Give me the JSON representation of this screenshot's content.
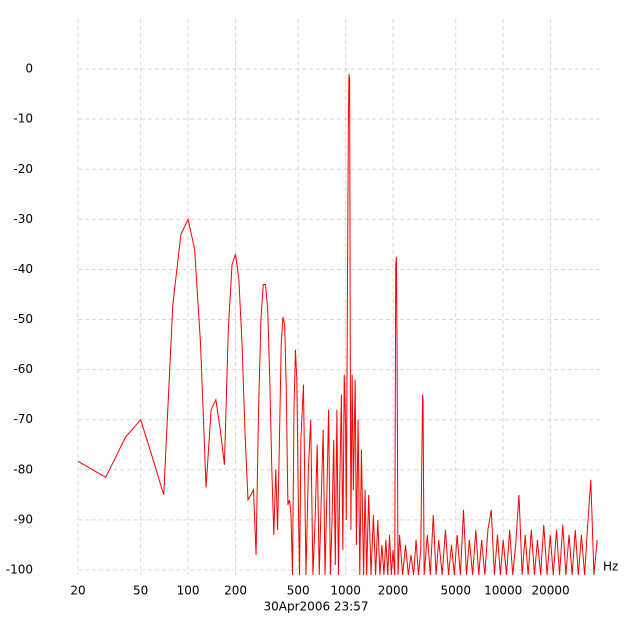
{
  "chart_data": {
    "type": "line",
    "color": "#ff0000",
    "log_x": true,
    "grid": true,
    "xlabel": "Hz",
    "caption": "30Apr2006  23:57",
    "xlim": [
      20,
      40000
    ],
    "ylim": [
      -101,
      10
    ],
    "xticks": [
      20,
      50,
      100,
      200,
      500,
      1000,
      2000,
      5000,
      10000,
      20000
    ],
    "yticks": [
      0,
      -10,
      -20,
      -30,
      -40,
      -50,
      -60,
      -70,
      -80,
      -90,
      -100
    ],
    "x": [
      20,
      30,
      40,
      50,
      60,
      70,
      80,
      90,
      100,
      110,
      120,
      130,
      140,
      150,
      160,
      170,
      180,
      190,
      200,
      210,
      220,
      230,
      240,
      250,
      260,
      270,
      280,
      290,
      300,
      310,
      320,
      330,
      340,
      350,
      360,
      370,
      380,
      390,
      400,
      410,
      420,
      430,
      440,
      450,
      460,
      470,
      480,
      490,
      500,
      510,
      520,
      540,
      560,
      580,
      600,
      620,
      640,
      660,
      680,
      700,
      720,
      740,
      760,
      780,
      800,
      820,
      840,
      860,
      880,
      900,
      920,
      940,
      960,
      980,
      1000,
      1010,
      1020,
      1040,
      1050,
      1060,
      1070,
      1080,
      1100,
      1120,
      1150,
      1170,
      1200,
      1230,
      1260,
      1300,
      1330,
      1360,
      1400,
      1450,
      1500,
      1550,
      1600,
      1650,
      1700,
      1750,
      1800,
      1850,
      1900,
      1950,
      2000,
      2050,
      2080,
      2100,
      2120,
      2150,
      2200,
      2300,
      2400,
      2500,
      2600,
      2700,
      2800,
      2900,
      3000,
      3080,
      3100,
      3150,
      3300,
      3450,
      3600,
      3750,
      3900,
      4100,
      4300,
      4500,
      4700,
      4900,
      5100,
      5350,
      5600,
      5850,
      6100,
      6400,
      6700,
      7000,
      7300,
      7650,
      8000,
      8400,
      8800,
      9200,
      9600,
      10000,
      10500,
      11000,
      11500,
      12000,
      12600,
      13200,
      13800,
      14400,
      15100,
      15800,
      16500,
      17300,
      18100,
      19000,
      19900,
      20800,
      21800,
      22800,
      23900,
      25000,
      26200,
      27400,
      28700,
      30000,
      31400,
      32900,
      34400,
      36000,
      37700,
      39500
    ],
    "values": [
      -78.3,
      -81.5,
      -73.5,
      -70,
      -78,
      -85,
      -47,
      -33,
      -30,
      -36,
      -55,
      -83.5,
      -68,
      -66,
      -72,
      -79,
      -52,
      -39,
      -37,
      -42,
      -55,
      -73,
      -86,
      -85,
      -84,
      -97,
      -68,
      -50,
      -43,
      -43,
      -48,
      -62,
      -80,
      -93,
      -80,
      -92,
      -74,
      -55,
      -49.5,
      -51,
      -64,
      -87,
      -86,
      -89,
      -101,
      -68,
      -56,
      -62,
      -85,
      -101,
      -74,
      -63,
      -101,
      -80,
      -70,
      -101,
      -90,
      -75,
      -101,
      -86,
      -72,
      -101,
      -85,
      -68,
      -101,
      -90,
      -74,
      -99,
      -68,
      -101,
      -81,
      -65,
      -96,
      -61,
      -72,
      -90,
      -62,
      -12,
      -1,
      -2,
      -55,
      -92,
      -61,
      -84,
      -62,
      -95,
      -70,
      -101,
      -76,
      -101,
      -84,
      -101,
      -85,
      -101,
      -89,
      -101,
      -90,
      -101,
      -95,
      -101,
      -94,
      -101,
      -93,
      -101,
      -96,
      -101,
      -39,
      -37.5,
      -55,
      -101,
      -93,
      -101,
      -95,
      -101,
      -97,
      -101,
      -94,
      -101,
      -96,
      -65,
      -66,
      -101,
      -93,
      -101,
      -89,
      -101,
      -94,
      -101,
      -92,
      -101,
      -95,
      -101,
      -93,
      -101,
      -88,
      -101,
      -94,
      -101,
      -92,
      -101,
      -94,
      -101,
      -92,
      -88,
      -101,
      -93,
      -101,
      -94,
      -101,
      -92,
      -101,
      -95,
      -85,
      -101,
      -93,
      -101,
      -92,
      -101,
      -94,
      -101,
      -91,
      -101,
      -93,
      -101,
      -92,
      -101,
      -91,
      -101,
      -93,
      -101,
      -92,
      -101,
      -93,
      -101,
      -91,
      -82,
      -101,
      -94
    ]
  }
}
